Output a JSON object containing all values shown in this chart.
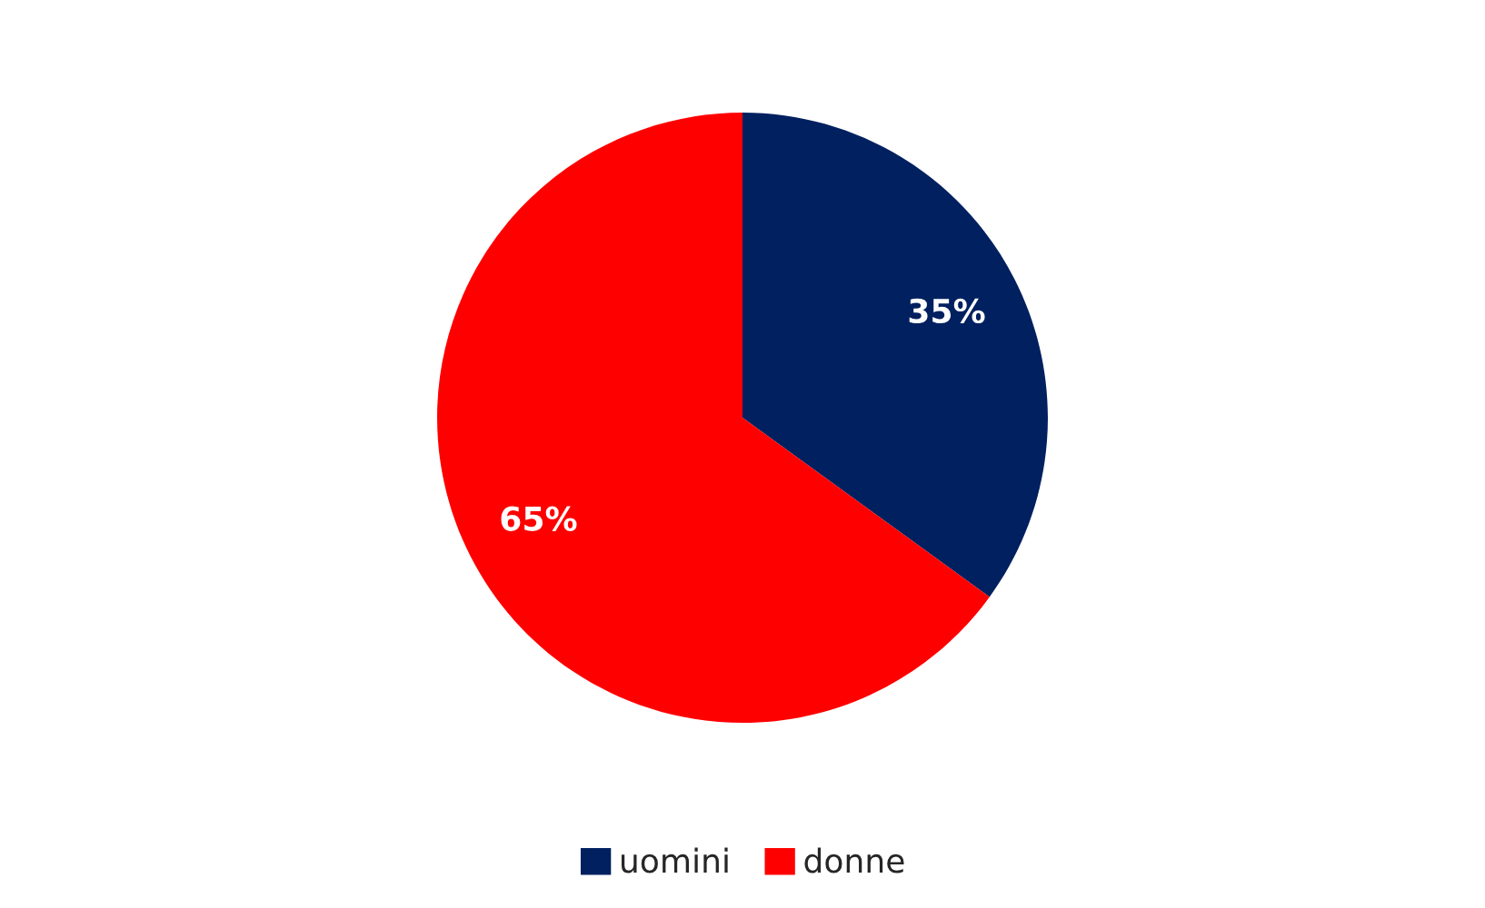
{
  "chart_data": {
    "type": "pie",
    "categories": [
      "uomini",
      "donne"
    ],
    "values": [
      35,
      65
    ],
    "colors": [
      "#002060",
      "#ff0000"
    ],
    "value_labels": [
      "35%",
      "65%"
    ],
    "legend": "bottom"
  }
}
